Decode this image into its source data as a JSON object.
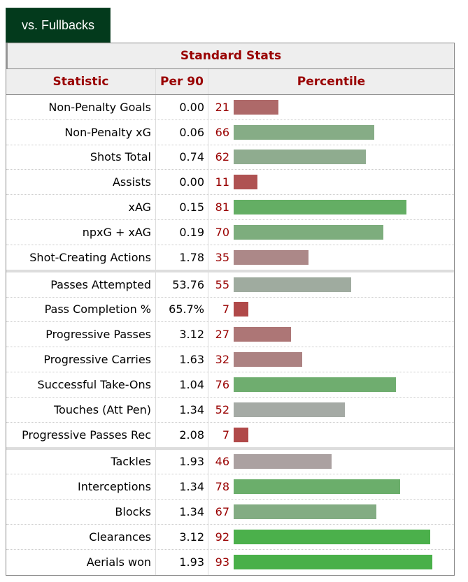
{
  "tab": {
    "label": "vs. Fullbacks"
  },
  "table": {
    "caption": "Standard Stats",
    "headers": {
      "statistic": "Statistic",
      "per90": "Per 90",
      "percentile": "Percentile"
    },
    "sections": [
      [
        {
          "statistic": "Non-Penalty Goals",
          "per90": "0.00",
          "percentile": 21
        },
        {
          "statistic": "Non-Penalty xG",
          "per90": "0.06",
          "percentile": 66
        },
        {
          "statistic": "Shots Total",
          "per90": "0.74",
          "percentile": 62
        },
        {
          "statistic": "Assists",
          "per90": "0.00",
          "percentile": 11
        },
        {
          "statistic": "xAG",
          "per90": "0.15",
          "percentile": 81
        },
        {
          "statistic": "npxG + xAG",
          "per90": "0.19",
          "percentile": 70
        },
        {
          "statistic": "Shot-Creating Actions",
          "per90": "1.78",
          "percentile": 35
        }
      ],
      [
        {
          "statistic": "Passes Attempted",
          "per90": "53.76",
          "percentile": 55
        },
        {
          "statistic": "Pass Completion %",
          "per90": "65.7%",
          "percentile": 7
        },
        {
          "statistic": "Progressive Passes",
          "per90": "3.12",
          "percentile": 27
        },
        {
          "statistic": "Progressive Carries",
          "per90": "1.63",
          "percentile": 32
        },
        {
          "statistic": "Successful Take-Ons",
          "per90": "1.04",
          "percentile": 76
        },
        {
          "statistic": "Touches (Att Pen)",
          "per90": "1.34",
          "percentile": 52
        },
        {
          "statistic": "Progressive Passes Rec",
          "per90": "2.08",
          "percentile": 7
        }
      ],
      [
        {
          "statistic": "Tackles",
          "per90": "1.93",
          "percentile": 46
        },
        {
          "statistic": "Interceptions",
          "per90": "1.34",
          "percentile": 78
        },
        {
          "statistic": "Blocks",
          "per90": "1.34",
          "percentile": 67
        },
        {
          "statistic": "Clearances",
          "per90": "3.12",
          "percentile": 92
        },
        {
          "statistic": "Aerials won",
          "per90": "1.93",
          "percentile": 93
        }
      ]
    ]
  },
  "colors": {
    "tab_bg": "#033a1c",
    "header_text": "#990000",
    "low": "#b04545",
    "mid": "#aaaaaa",
    "high": "#44b044"
  }
}
